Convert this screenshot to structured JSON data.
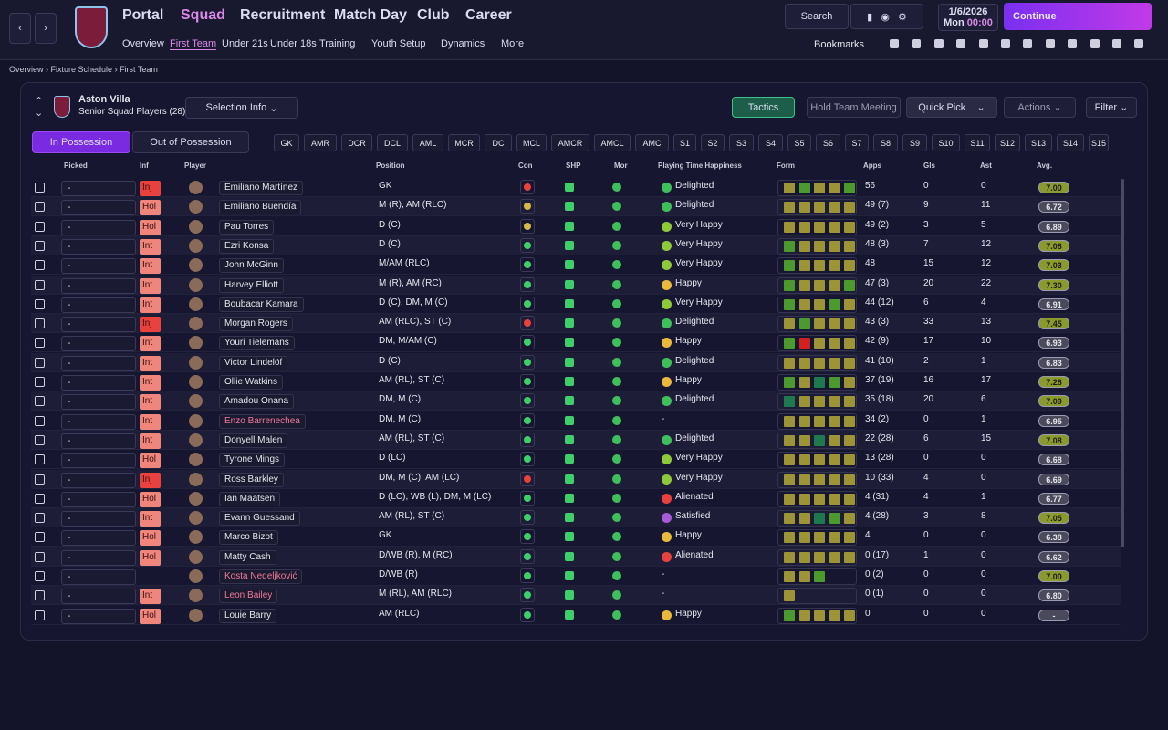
{
  "nav": {
    "menus": [
      "Portal",
      "Squad",
      "Recruitment",
      "Match Day",
      "Club",
      "Career"
    ],
    "submenus": [
      "Overview",
      "First Team",
      "Under 21s",
      "Under 18s",
      "Training",
      "Youth Setup",
      "Dynamics",
      "More"
    ],
    "search": "Search",
    "date": "1/6/2026",
    "day": "Mon",
    "time": "00:00",
    "continue": "Continue",
    "bookmarks": "Bookmarks"
  },
  "breadcrumb": [
    "Overview",
    "Fixture Schedule",
    "First Team"
  ],
  "team": {
    "name": "Aston Villa",
    "subtitle": "Senior Squad Players (28)"
  },
  "buttons": {
    "selection_info": "Selection Info",
    "tactics": "Tactics",
    "team_meeting": "Hold Team Meeting",
    "quick_pick": "Quick Pick",
    "actions": "Actions",
    "filter": "Filter"
  },
  "tabs": [
    "In Possession",
    "Out of Possession"
  ],
  "positions": [
    "GK",
    "AMR",
    "DCR",
    "DCL",
    "AML",
    "MCR",
    "DC",
    "MCL",
    "AMCR",
    "AMCL",
    "AMC",
    "S1",
    "S2",
    "S3",
    "S4",
    "S5",
    "S6",
    "S7",
    "S8",
    "S9",
    "S10",
    "S11",
    "S12",
    "S13",
    "S14",
    "S15"
  ],
  "table": {
    "columns": [
      "Picked",
      "Inf",
      "Player",
      "Position",
      "Con",
      "SHP",
      "Mor",
      "Playing Time Happiness",
      "Form",
      "Apps",
      "Gls",
      "Ast",
      "Avg."
    ],
    "rows": [
      {
        "picked": "-",
        "inf": "Inj",
        "player": "Emiliano Martínez",
        "position": "GK",
        "happiness": "Delighted",
        "apps": "56",
        "gls": "0",
        "ast": "0",
        "avg": "7.00",
        "inf_color": "#e8413e",
        "name_color": "#e6e6ee",
        "con_color": "#e8413e",
        "mood_color": "#3fbf5a",
        "form": [
          "#9c9436",
          "#4c9a2e",
          "#9c9436",
          "#9c9436",
          "#4c9a2e"
        ]
      },
      {
        "picked": "-",
        "inf": "Hol",
        "player": "Emiliano Buendía",
        "position": "M (R), AM (RLC)",
        "happiness": "Delighted",
        "apps": "49 (7)",
        "gls": "9",
        "ast": "11",
        "avg": "6.72",
        "inf_color": "#f0857c",
        "name_color": "#e6e6ee",
        "con_color": "#d9b84a",
        "mood_color": "#3fbf5a",
        "form": [
          "#9c9436",
          "#9c9436",
          "#9c9436",
          "#9c9436",
          "#9c9436"
        ]
      },
      {
        "picked": "-",
        "inf": "Hol",
        "player": "Pau Torres",
        "position": "D (C)",
        "happiness": "Very Happy",
        "apps": "49 (2)",
        "gls": "3",
        "ast": "5",
        "avg": "6.89",
        "inf_color": "#f0857c",
        "name_color": "#e6e6ee",
        "con_color": "#d9b84a",
        "mood_color": "#8fc93a",
        "form": [
          "#9c9436",
          "#9c9436",
          "#9c9436",
          "#9c9436",
          "#9c9436"
        ]
      },
      {
        "picked": "-",
        "inf": "Int",
        "player": "Ezri Konsa",
        "position": "D (C)",
        "happiness": "Very Happy",
        "apps": "48 (3)",
        "gls": "7",
        "ast": "12",
        "avg": "7.08",
        "inf_color": "#f0857c",
        "name_color": "#e6e6ee",
        "con_color": "#3fcf6a",
        "mood_color": "#8fc93a",
        "form": [
          "#4c9a2e",
          "#9c9436",
          "#9c9436",
          "#9c9436",
          "#9c9436"
        ]
      },
      {
        "picked": "-",
        "inf": "Int",
        "player": "John McGinn",
        "position": "M/AM (RLC)",
        "happiness": "Very Happy",
        "apps": "48",
        "gls": "15",
        "ast": "12",
        "avg": "7.03",
        "inf_color": "#f0857c",
        "name_color": "#e6e6ee",
        "con_color": "#3fcf6a",
        "mood_color": "#8fc93a",
        "form": [
          "#4c9a2e",
          "#9c9436",
          "#9c9436",
          "#9c9436",
          "#9c9436"
        ]
      },
      {
        "picked": "-",
        "inf": "Int",
        "player": "Harvey Elliott",
        "position": "M (R), AM (RC)",
        "happiness": "Happy",
        "apps": "47 (3)",
        "gls": "20",
        "ast": "22",
        "avg": "7.30",
        "inf_color": "#f0857c",
        "name_color": "#e6e6ee",
        "con_color": "#3fcf6a",
        "mood_color": "#e8b93a",
        "form": [
          "#4c9a2e",
          "#9c9436",
          "#9c9436",
          "#9c9436",
          "#4c9a2e"
        ]
      },
      {
        "picked": "-",
        "inf": "Int",
        "player": "Boubacar Kamara",
        "position": "D (C), DM, M (C)",
        "happiness": "Very Happy",
        "apps": "44 (12)",
        "gls": "6",
        "ast": "4",
        "avg": "6.91",
        "inf_color": "#f0857c",
        "name_color": "#e6e6ee",
        "con_color": "#3fcf6a",
        "mood_color": "#8fc93a",
        "form": [
          "#4c9a2e",
          "#9c9436",
          "#9c9436",
          "#4c9a2e",
          "#9c9436"
        ]
      },
      {
        "picked": "-",
        "inf": "Inj",
        "player": "Morgan Rogers",
        "position": "AM (RLC), ST (C)",
        "happiness": "Delighted",
        "apps": "43 (3)",
        "gls": "33",
        "ast": "13",
        "avg": "7.45",
        "inf_color": "#e8413e",
        "name_color": "#e6e6ee",
        "con_color": "#e8413e",
        "mood_color": "#3fbf5a",
        "form": [
          "#9c9436",
          "#4c9a2e",
          "#9c9436",
          "#9c9436",
          "#9c9436"
        ]
      },
      {
        "picked": "-",
        "inf": "Int",
        "player": "Youri Tielemans",
        "position": "DM, M/AM (C)",
        "happiness": "Happy",
        "apps": "42 (9)",
        "gls": "17",
        "ast": "10",
        "avg": "6.93",
        "inf_color": "#f0857c",
        "name_color": "#e6e6ee",
        "con_color": "#3fcf6a",
        "mood_color": "#e8b93a",
        "form": [
          "#4c9a2e",
          "#d12020",
          "#9c9436",
          "#9c9436",
          "#9c9436"
        ]
      },
      {
        "picked": "-",
        "inf": "Int",
        "player": "Victor Lindelöf",
        "position": "D (C)",
        "happiness": "Delighted",
        "apps": "41 (10)",
        "gls": "2",
        "ast": "1",
        "avg": "6.83",
        "inf_color": "#f0857c",
        "name_color": "#e6e6ee",
        "con_color": "#3fcf6a",
        "mood_color": "#3fbf5a",
        "form": [
          "#9c9436",
          "#9c9436",
          "#9c9436",
          "#9c9436",
          "#9c9436"
        ]
      },
      {
        "picked": "-",
        "inf": "Int",
        "player": "Ollie Watkins",
        "position": "AM (RL), ST (C)",
        "happiness": "Happy",
        "apps": "37 (19)",
        "gls": "16",
        "ast": "17",
        "avg": "7.28",
        "inf_color": "#f0857c",
        "name_color": "#e6e6ee",
        "con_color": "#3fcf6a",
        "mood_color": "#e8b93a",
        "form": [
          "#4c9a2e",
          "#9c9436",
          "#1e7a4e",
          "#4c9a2e",
          "#9c9436"
        ]
      },
      {
        "picked": "-",
        "inf": "Int",
        "player": "Amadou Onana",
        "position": "DM, M (C)",
        "happiness": "Delighted",
        "apps": "35 (18)",
        "gls": "20",
        "ast": "6",
        "avg": "7.09",
        "inf_color": "#f0857c",
        "name_color": "#e6e6ee",
        "con_color": "#3fcf6a",
        "mood_color": "#3fbf5a",
        "form": [
          "#1e7a4e",
          "#9c9436",
          "#9c9436",
          "#9c9436",
          "#9c9436"
        ]
      },
      {
        "picked": "-",
        "inf": "Int",
        "player": "Enzo Barrenechea",
        "position": "DM, M (C)",
        "happiness": "-",
        "apps": "34 (2)",
        "gls": "0",
        "ast": "1",
        "avg": "6.95",
        "inf_color": "#f0857c",
        "name_color": "#f07a9a",
        "con_color": "#3fcf6a",
        "mood_color": "#e6e6ee",
        "form": [
          "#9c9436",
          "#9c9436",
          "#9c9436",
          "#9c9436",
          "#9c9436"
        ]
      },
      {
        "picked": "-",
        "inf": "Int",
        "player": "Donyell Malen",
        "position": "AM (RL), ST (C)",
        "happiness": "Delighted",
        "apps": "22 (28)",
        "gls": "6",
        "ast": "15",
        "avg": "7.08",
        "inf_color": "#f0857c",
        "name_color": "#e6e6ee",
        "con_color": "#3fcf6a",
        "mood_color": "#3fbf5a",
        "form": [
          "#9c9436",
          "#9c9436",
          "#1e7a4e",
          "#9c9436",
          "#9c9436"
        ]
      },
      {
        "picked": "-",
        "inf": "Hol",
        "player": "Tyrone Mings",
        "position": "D (LC)",
        "happiness": "Very Happy",
        "apps": "13 (28)",
        "gls": "0",
        "ast": "0",
        "avg": "6.68",
        "inf_color": "#f0857c",
        "name_color": "#e6e6ee",
        "con_color": "#3fcf6a",
        "mood_color": "#8fc93a",
        "form": [
          "#9c9436",
          "#9c9436",
          "#9c9436",
          "#9c9436",
          "#9c9436"
        ]
      },
      {
        "picked": "-",
        "inf": "Inj",
        "player": "Ross Barkley",
        "position": "DM, M (C), AM (LC)",
        "happiness": "Very Happy",
        "apps": "10 (33)",
        "gls": "4",
        "ast": "0",
        "avg": "6.69",
        "inf_color": "#e8413e",
        "name_color": "#e6e6ee",
        "con_color": "#e8413e",
        "mood_color": "#8fc93a",
        "form": [
          "#9c9436",
          "#9c9436",
          "#9c9436",
          "#9c9436",
          "#9c9436"
        ]
      },
      {
        "picked": "-",
        "inf": "Hol",
        "player": "Ian Maatsen",
        "position": "D (LC), WB (L), DM, M (LC)",
        "happiness": "Alienated",
        "apps": "4 (31)",
        "gls": "4",
        "ast": "1",
        "avg": "6.77",
        "inf_color": "#f0857c",
        "name_color": "#e6e6ee",
        "con_color": "#3fcf6a",
        "mood_color": "#e8413e",
        "form": [
          "#9c9436",
          "#9c9436",
          "#9c9436",
          "#9c9436",
          "#9c9436"
        ]
      },
      {
        "picked": "-",
        "inf": "Int",
        "player": "Evann Guessand",
        "position": "AM (RL), ST (C)",
        "happiness": "Satisfied",
        "apps": "4 (28)",
        "gls": "3",
        "ast": "8",
        "avg": "7.05",
        "inf_color": "#f0857c",
        "name_color": "#e6e6ee",
        "con_color": "#3fcf6a",
        "mood_color": "#a65ad8",
        "form": [
          "#9c9436",
          "#9c9436",
          "#1e7a4e",
          "#4c9a2e",
          "#9c9436"
        ]
      },
      {
        "picked": "-",
        "inf": "Hol",
        "player": "Marco Bizot",
        "position": "GK",
        "happiness": "Happy",
        "apps": "4",
        "gls": "0",
        "ast": "0",
        "avg": "6.38",
        "inf_color": "#f0857c",
        "name_color": "#e6e6ee",
        "con_color": "#3fcf6a",
        "mood_color": "#e8b93a",
        "form": [
          "#9c9436",
          "#9c9436",
          "#9c9436",
          "#9c9436",
          "#9c9436"
        ]
      },
      {
        "picked": "-",
        "inf": "Hol",
        "player": "Matty Cash",
        "position": "D/WB (R), M (RC)",
        "happiness": "Alienated",
        "apps": "0 (17)",
        "gls": "1",
        "ast": "0",
        "avg": "6.62",
        "inf_color": "#f0857c",
        "name_color": "#e6e6ee",
        "con_color": "#3fcf6a",
        "mood_color": "#e8413e",
        "form": [
          "#9c9436",
          "#9c9436",
          "#9c9436",
          "#9c9436",
          "#9c9436"
        ]
      },
      {
        "picked": "-",
        "inf": "",
        "player": "Kosta Nedeljković",
        "position": "D/WB (R)",
        "happiness": "-",
        "apps": "0 (2)",
        "gls": "0",
        "ast": "0",
        "avg": "7.00",
        "inf_color": "#14142a",
        "name_color": "#f07a9a",
        "con_color": "#3fcf6a",
        "mood_color": "#e6e6ee",
        "form": [
          "#9c9436",
          "#9c9436",
          "#4c9a2e"
        ]
      },
      {
        "picked": "-",
        "inf": "Int",
        "player": "Leon Bailey",
        "position": "M (RL), AM (RLC)",
        "happiness": "-",
        "apps": "0 (1)",
        "gls": "0",
        "ast": "0",
        "avg": "6.80",
        "inf_color": "#f0857c",
        "name_color": "#f07a9a",
        "con_color": "#3fcf6a",
        "mood_color": "#e6e6ee",
        "form": [
          "#9c9436"
        ]
      },
      {
        "picked": "-",
        "inf": "Hol",
        "player": "Louie Barry",
        "position": "AM (RLC)",
        "happiness": "Happy",
        "apps": "0",
        "gls": "0",
        "ast": "0",
        "avg": "-",
        "inf_color": "#f0857c",
        "name_color": "#e6e6ee",
        "con_color": "#3fcf6a",
        "mood_color": "#e8b93a",
        "form": [
          "#4c9a2e",
          "#9c9436",
          "#9c9436",
          "#9c9436",
          "#9c9436"
        ]
      }
    ]
  }
}
